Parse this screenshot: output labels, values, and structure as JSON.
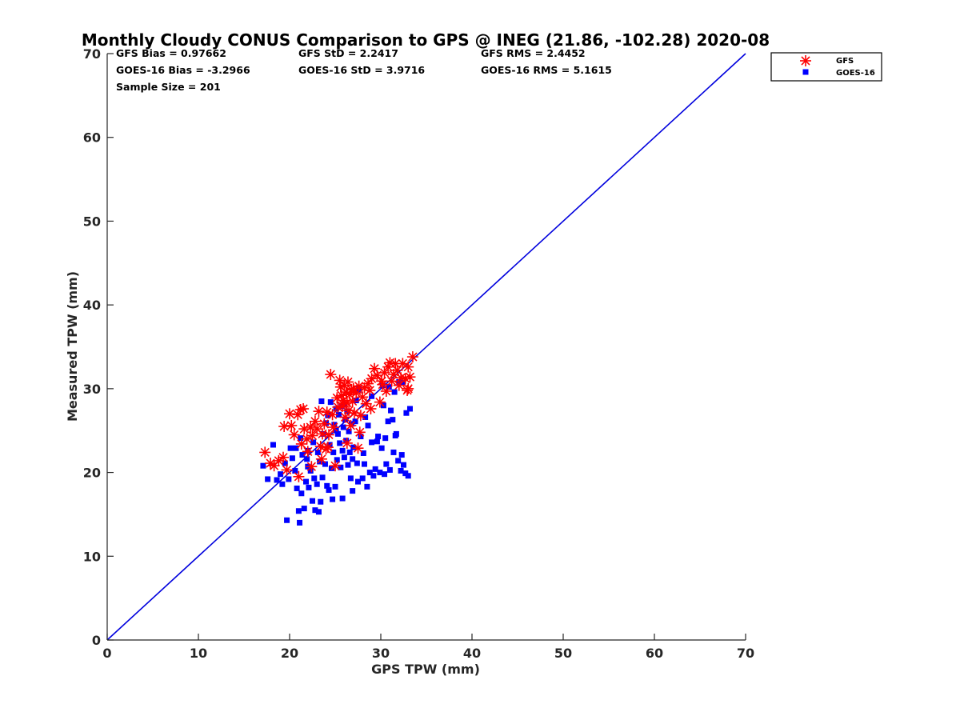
{
  "chart_data": {
    "type": "scatter",
    "title": "Monthly Cloudy CONUS Comparison to GPS @ INEG (21.86, -102.28) 2020-08",
    "xlabel": "GPS TPW (mm)",
    "ylabel": "Measured TPW (mm)",
    "xlim": [
      0,
      70
    ],
    "ylim": [
      0,
      70
    ],
    "xticks": [
      0,
      10,
      20,
      30,
      40,
      50,
      60,
      70
    ],
    "yticks": [
      0,
      10,
      20,
      30,
      40,
      50,
      60,
      70
    ],
    "reference_line": {
      "name": "1:1 line",
      "x": [
        0,
        70
      ],
      "y": [
        0,
        70
      ],
      "color": "#0000dd"
    },
    "stats": {
      "gfs_bias": "GFS Bias = 0.97662",
      "gfs_std": "GFS StD = 2.2417",
      "gfs_rms": "GFS RMS = 2.4452",
      "goes_bias": "GOES-16 Bias = -3.2966",
      "goes_std": "GOES-16 StD = 3.9716",
      "goes_rms": "GOES-16 RMS = 5.1615",
      "sample_size": "Sample Size = 201"
    },
    "legend": [
      {
        "label": "GFS",
        "marker": "asterisk",
        "color": "#ff0000"
      },
      {
        "label": "GOES-16",
        "marker": "square",
        "color": "#0000ff"
      }
    ],
    "series": [
      {
        "name": "GFS",
        "marker": "asterisk",
        "color": "#ff0000",
        "points": [
          [
            17.3,
            22.4
          ],
          [
            17.9,
            21.1
          ],
          [
            18.3,
            20.8
          ],
          [
            18.8,
            21.4
          ],
          [
            19.3,
            21.8
          ],
          [
            19.7,
            20.3
          ],
          [
            20.0,
            27.0
          ],
          [
            20.2,
            25.6
          ],
          [
            19.4,
            25.5
          ],
          [
            20.5,
            24.5
          ],
          [
            20.9,
            26.9
          ],
          [
            21.0,
            19.5
          ],
          [
            21.2,
            27.5
          ],
          [
            21.5,
            27.6
          ],
          [
            21.3,
            23.4
          ],
          [
            21.6,
            25.2
          ],
          [
            21.9,
            24.0
          ],
          [
            22.0,
            22.5
          ],
          [
            22.3,
            25.4
          ],
          [
            22.5,
            24.4
          ],
          [
            22.8,
            26.1
          ],
          [
            23.0,
            25.2
          ],
          [
            23.2,
            27.3
          ],
          [
            23.4,
            23.1
          ],
          [
            23.6,
            24.6
          ],
          [
            23.8,
            25.8
          ],
          [
            24.0,
            22.8
          ],
          [
            24.1,
            27.2
          ],
          [
            24.3,
            24.5
          ],
          [
            24.5,
            31.7
          ],
          [
            24.7,
            26.9
          ],
          [
            24.8,
            25.4
          ],
          [
            25.0,
            20.8
          ],
          [
            25.2,
            28.9
          ],
          [
            25.3,
            27.8
          ],
          [
            25.5,
            31.0
          ],
          [
            25.6,
            30.2
          ],
          [
            25.7,
            29.2
          ],
          [
            25.8,
            27.9
          ],
          [
            25.9,
            28.6
          ],
          [
            26.0,
            30.4
          ],
          [
            26.1,
            26.6
          ],
          [
            26.2,
            29.6
          ],
          [
            26.3,
            28.3
          ],
          [
            26.4,
            30.8
          ],
          [
            26.5,
            27.4
          ],
          [
            26.6,
            29.3
          ],
          [
            26.7,
            25.6
          ],
          [
            26.8,
            29.9
          ],
          [
            26.9,
            28.5
          ],
          [
            27.0,
            30.0
          ],
          [
            27.1,
            27.1
          ],
          [
            27.3,
            29.5
          ],
          [
            27.5,
            22.9
          ],
          [
            27.6,
            30.3
          ],
          [
            27.8,
            26.8
          ],
          [
            28.0,
            29.0
          ],
          [
            28.2,
            30.1
          ],
          [
            28.4,
            28.2
          ],
          [
            28.6,
            30.6
          ],
          [
            28.8,
            29.8
          ],
          [
            29.0,
            31.2
          ],
          [
            29.3,
            32.4
          ],
          [
            29.6,
            31.6
          ],
          [
            29.9,
            28.4
          ],
          [
            30.2,
            30.5
          ],
          [
            30.4,
            31.9
          ],
          [
            30.6,
            29.7
          ],
          [
            30.8,
            32.6
          ],
          [
            31.0,
            33.1
          ],
          [
            31.2,
            30.9
          ],
          [
            31.4,
            31.7
          ],
          [
            31.6,
            33.0
          ],
          [
            31.8,
            32.2
          ],
          [
            32.0,
            30.4
          ],
          [
            32.2,
            31.3
          ],
          [
            32.4,
            33.0
          ],
          [
            32.7,
            31.2
          ],
          [
            33.0,
            30.0
          ],
          [
            33.2,
            31.4
          ],
          [
            33.5,
            33.8
          ],
          [
            33.0,
            32.6
          ],
          [
            22.4,
            20.7
          ],
          [
            23.5,
            21.6
          ],
          [
            24.2,
            23.0
          ],
          [
            26.3,
            23.5
          ],
          [
            27.7,
            24.8
          ],
          [
            28.9,
            27.6
          ],
          [
            30.1,
            30.9
          ],
          [
            32.9,
            29.8
          ]
        ]
      },
      {
        "name": "GOES-16",
        "marker": "square",
        "color": "#0000ff",
        "points": [
          [
            17.1,
            20.8
          ],
          [
            17.6,
            19.2
          ],
          [
            18.2,
            23.3
          ],
          [
            18.6,
            19.1
          ],
          [
            19.0,
            19.8
          ],
          [
            19.2,
            18.6
          ],
          [
            19.5,
            21.1
          ],
          [
            19.7,
            14.3
          ],
          [
            19.9,
            19.2
          ],
          [
            20.1,
            22.9
          ],
          [
            20.3,
            21.7
          ],
          [
            20.6,
            20.2
          ],
          [
            20.8,
            18.1
          ],
          [
            21.0,
            15.4
          ],
          [
            21.1,
            14.0
          ],
          [
            21.3,
            17.5
          ],
          [
            21.4,
            22.1
          ],
          [
            21.6,
            15.7
          ],
          [
            21.8,
            18.9
          ],
          [
            22.0,
            22.6
          ],
          [
            22.1,
            18.2
          ],
          [
            22.3,
            20.2
          ],
          [
            22.5,
            16.6
          ],
          [
            22.7,
            19.3
          ],
          [
            22.8,
            15.5
          ],
          [
            23.0,
            18.6
          ],
          [
            23.1,
            22.4
          ],
          [
            23.2,
            15.3
          ],
          [
            23.4,
            16.5
          ],
          [
            23.5,
            28.5
          ],
          [
            23.6,
            19.4
          ],
          [
            23.7,
            24.6
          ],
          [
            23.9,
            21.0
          ],
          [
            24.1,
            18.4
          ],
          [
            24.2,
            26.8
          ],
          [
            24.3,
            17.9
          ],
          [
            24.4,
            23.3
          ],
          [
            24.5,
            28.4
          ],
          [
            24.7,
            16.8
          ],
          [
            24.8,
            22.4
          ],
          [
            24.9,
            25.7
          ],
          [
            25.0,
            18.3
          ],
          [
            25.1,
            27.6
          ],
          [
            25.2,
            21.5
          ],
          [
            25.3,
            24.6
          ],
          [
            25.4,
            26.9
          ],
          [
            25.5,
            23.5
          ],
          [
            25.6,
            20.6
          ],
          [
            25.7,
            27.9
          ],
          [
            25.8,
            22.6
          ],
          [
            25.9,
            25.4
          ],
          [
            26.0,
            21.8
          ],
          [
            26.1,
            26.3
          ],
          [
            26.2,
            23.8
          ],
          [
            26.3,
            27.3
          ],
          [
            26.4,
            20.9
          ],
          [
            26.5,
            24.9
          ],
          [
            26.6,
            22.4
          ],
          [
            26.7,
            19.3
          ],
          [
            26.8,
            25.8
          ],
          [
            26.9,
            21.6
          ],
          [
            27.0,
            23.0
          ],
          [
            27.2,
            26.1
          ],
          [
            27.4,
            21.1
          ],
          [
            27.5,
            18.9
          ],
          [
            27.6,
            29.9
          ],
          [
            27.8,
            24.3
          ],
          [
            28.0,
            19.3
          ],
          [
            28.1,
            22.3
          ],
          [
            28.3,
            26.6
          ],
          [
            28.5,
            18.3
          ],
          [
            28.6,
            25.6
          ],
          [
            28.8,
            20.0
          ],
          [
            29.0,
            23.6
          ],
          [
            29.2,
            19.6
          ],
          [
            29.4,
            20.4
          ],
          [
            29.6,
            23.7
          ],
          [
            29.7,
            24.3
          ],
          [
            29.9,
            20.0
          ],
          [
            30.1,
            22.9
          ],
          [
            30.3,
            28.0
          ],
          [
            30.4,
            19.8
          ],
          [
            30.5,
            24.1
          ],
          [
            30.6,
            21.0
          ],
          [
            30.8,
            26.1
          ],
          [
            31.0,
            20.3
          ],
          [
            31.1,
            27.4
          ],
          [
            31.3,
            26.3
          ],
          [
            31.4,
            22.4
          ],
          [
            31.6,
            24.4
          ],
          [
            31.7,
            24.6
          ],
          [
            31.9,
            21.4
          ],
          [
            32.0,
            30.8
          ],
          [
            32.2,
            20.2
          ],
          [
            32.3,
            22.1
          ],
          [
            32.5,
            20.9
          ],
          [
            32.7,
            19.9
          ],
          [
            32.8,
            27.1
          ],
          [
            33.0,
            19.6
          ],
          [
            33.2,
            27.6
          ],
          [
            30.2,
            30.4
          ],
          [
            29.0,
            29.1
          ],
          [
            27.3,
            28.6
          ],
          [
            26.0,
            28.1
          ],
          [
            25.1,
            25.0
          ],
          [
            24.0,
            25.9
          ],
          [
            22.6,
            23.6
          ],
          [
            21.9,
            21.6
          ],
          [
            20.7,
            22.9
          ],
          [
            24.6,
            20.5
          ],
          [
            26.9,
            17.8
          ],
          [
            25.8,
            16.9
          ],
          [
            23.3,
            21.3
          ],
          [
            22.0,
            20.7
          ],
          [
            21.2,
            24.1
          ],
          [
            28.2,
            21.0
          ],
          [
            30.9,
            30.2
          ],
          [
            31.5,
            29.6
          ],
          [
            32.4,
            30.7
          ]
        ]
      }
    ]
  }
}
